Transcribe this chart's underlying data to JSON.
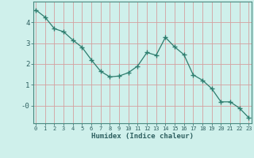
{
  "xlabel": "Humidex (Indice chaleur)",
  "x": [
    0,
    1,
    2,
    3,
    4,
    5,
    6,
    7,
    8,
    9,
    10,
    11,
    12,
    13,
    14,
    15,
    16,
    17,
    18,
    19,
    20,
    21,
    22,
    23
  ],
  "y": [
    4.6,
    4.25,
    3.7,
    3.55,
    3.15,
    2.8,
    2.2,
    1.65,
    1.38,
    1.42,
    1.58,
    1.9,
    2.55,
    2.42,
    3.28,
    2.82,
    2.45,
    1.48,
    1.22,
    0.82,
    0.18,
    0.18,
    -0.12,
    -0.58
  ],
  "line_color": "#2e7d6e",
  "bg_color": "#cff0eb",
  "grid_x_color": "#d4a0a0",
  "grid_y_color": "#d4a0a0",
  "tick_color": "#2e6060",
  "label_color": "#2e6060",
  "ylim": [
    -0.85,
    5.0
  ],
  "xlim": [
    -0.3,
    23.3
  ],
  "yticks": [
    0,
    1,
    2,
    3,
    4
  ],
  "ytick_labels": [
    "-0",
    "1",
    "2",
    "3",
    "4"
  ],
  "marker": "+",
  "marker_size": 4.0,
  "linewidth": 0.9,
  "xlabel_fontsize": 6.5,
  "xtick_fontsize": 5.0,
  "ytick_fontsize": 6.5
}
